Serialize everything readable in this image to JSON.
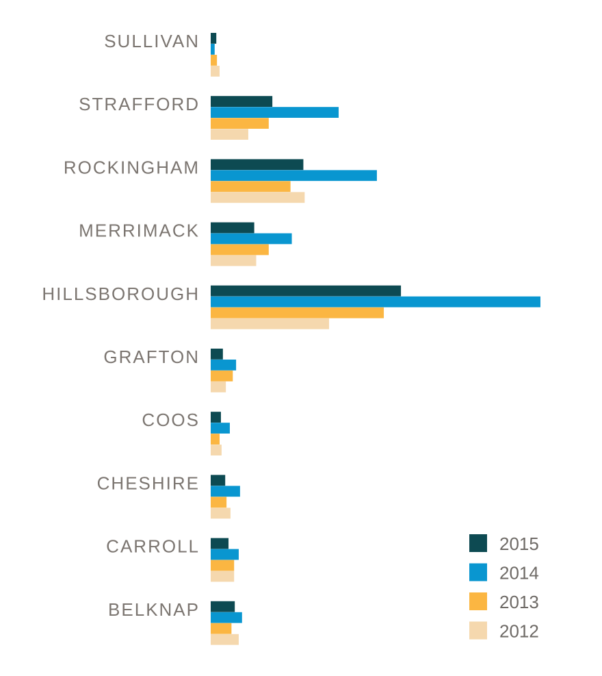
{
  "chart_data": {
    "type": "bar",
    "orientation": "horizontal",
    "title": "",
    "xlabel": "",
    "ylabel": "",
    "grid": false,
    "legend_position": "bottom-right",
    "categories": [
      "SULLIVAN",
      "STRAFFORD",
      "ROCKINGHAM",
      "MERRIMACK",
      "HILLSBOROUGH",
      "GRAFTON",
      "COOS",
      "CHESHIRE",
      "CARROLL",
      "BELKNAP"
    ],
    "xlim": [
      0,
      100
    ],
    "series": [
      {
        "name": "2015",
        "color": "#0d4a52",
        "values": [
          1.7,
          18.7,
          28.1,
          13.2,
          57.7,
          3.7,
          3.1,
          4.4,
          5.4,
          7.3
        ]
      },
      {
        "name": "2014",
        "color": "#0996d0",
        "values": [
          1.2,
          38.8,
          50.4,
          24.6,
          100,
          7.7,
          5.8,
          8.9,
          8.5,
          9.5
        ]
      },
      {
        "name": "2013",
        "color": "#fbb642",
        "values": [
          1.9,
          17.6,
          24.2,
          17.6,
          52.5,
          6.7,
          2.7,
          4.8,
          7.1,
          6.3
        ]
      },
      {
        "name": "2012",
        "color": "#f5d8ae",
        "values": [
          2.7,
          11.4,
          28.5,
          13.8,
          35.9,
          4.6,
          3.3,
          6.0,
          7.1,
          8.5
        ]
      }
    ]
  }
}
